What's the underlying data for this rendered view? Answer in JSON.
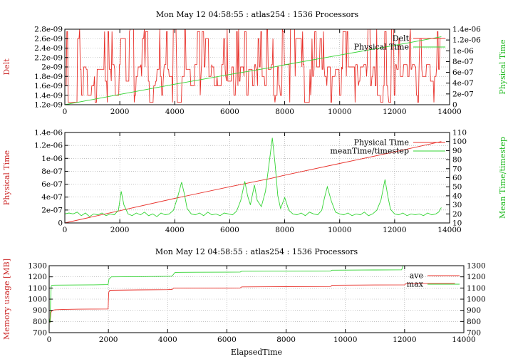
{
  "colors": {
    "red": "#e8302a",
    "green": "#33d433",
    "grid": "#a0a0a0",
    "axis": "#000000",
    "lblRed": "#cc2a2a",
    "lblGreen": "#22bb22"
  },
  "chart_data": [
    {
      "type": "line",
      "title": "Mon May 12 04:58:55 : atlas254 : 1536 Processors",
      "xlim": [
        0,
        14000
      ],
      "xticks": [
        0,
        2000,
        4000,
        6000,
        8000,
        10000,
        12000,
        14000
      ],
      "xtick_labels": [
        "0",
        "2000",
        "4000",
        "6000",
        "8000",
        "10000",
        "12000",
        "14000"
      ],
      "y_left": {
        "label": "Delt",
        "color": "red",
        "lim": [
          1.2e-09,
          2.8e-09
        ],
        "ticks": [
          1.2e-09,
          1.4e-09,
          1.6e-09,
          1.8e-09,
          2e-09,
          2.2e-09,
          2.4e-09,
          2.6e-09,
          2.8e-09
        ],
        "tick_labels": [
          "1.2e-09",
          "1.4e-09",
          "1.6e-09",
          "1.8e-09",
          "2e-09",
          "2.2e-09",
          "2.4e-09",
          "2.6e-09",
          "2.8e-09"
        ]
      },
      "y_right": {
        "label": "Physical Time",
        "color": "green",
        "lim": [
          0,
          1.4e-06
        ],
        "ticks": [
          0,
          2e-07,
          4e-07,
          6e-07,
          8e-07,
          1e-06,
          1.2e-06,
          1.4e-06
        ],
        "tick_labels": [
          "0",
          "2e-07",
          "4e-07",
          "6e-07",
          "8e-07",
          "1e-06",
          "1.2e-06",
          "1.4e-06"
        ]
      },
      "legend": "top-right",
      "series": [
        {
          "name": "Delt",
          "axis": "left",
          "color": "red",
          "kind": "noisy",
          "x_range": [
            0,
            13700
          ],
          "n": 560,
          "seed": 7,
          "levels": [
            1.25e-09,
            1.4e-09,
            1.6e-09,
            1.7e-09,
            1.8e-09,
            1.95e-09,
            2e-09,
            2.05e-09,
            2.6e-09,
            2.75e-09,
            2.8e-09
          ]
        },
        {
          "name": "Physical Time",
          "axis": "right",
          "color": "green",
          "kind": "line",
          "x": [
            0,
            2000,
            4000,
            6000,
            7500,
            8000,
            10000,
            12000,
            13700
          ],
          "y": [
            0,
            1.9e-07,
            3.8e-07,
            5.6e-07,
            6.9e-07,
            7.4e-07,
            9.2e-07,
            1.1e-06,
            1.26e-06
          ]
        }
      ]
    },
    {
      "type": "line",
      "title": "",
      "xlim": [
        0,
        14000
      ],
      "xticks": [
        0,
        2000,
        4000,
        6000,
        8000,
        10000,
        12000,
        14000
      ],
      "xtick_labels": [
        "0",
        "2000",
        "4000",
        "6000",
        "8000",
        "10000",
        "12000",
        "14000"
      ],
      "y_left": {
        "label": "Physical Time",
        "color": "red",
        "lim": [
          0,
          1.4e-06
        ],
        "ticks": [
          0,
          2e-07,
          4e-07,
          6e-07,
          8e-07,
          1e-06,
          1.2e-06,
          1.4e-06
        ],
        "tick_labels": [
          "0",
          "2e-07",
          "4e-07",
          "6e-07",
          "8e-07",
          "1e-06",
          "1.2e-06",
          "1.4e-06"
        ]
      },
      "y_right": {
        "label": "Mean Time/timestep",
        "color": "green",
        "lim": [
          10,
          110
        ],
        "ticks": [
          10,
          20,
          30,
          40,
          50,
          60,
          70,
          80,
          90,
          100,
          110
        ],
        "tick_labels": [
          "10",
          "20",
          "30",
          "40",
          "50",
          "60",
          "70",
          "80",
          "90",
          "100",
          "110"
        ]
      },
      "legend": "top-right",
      "series": [
        {
          "name": "Physical Time",
          "axis": "left",
          "color": "red",
          "kind": "line",
          "x": [
            0,
            2000,
            4000,
            6000,
            7500,
            8000,
            10000,
            12000,
            13700
          ],
          "y": [
            0,
            1.9e-07,
            3.8e-07,
            5.6e-07,
            6.9e-07,
            7.4e-07,
            9.2e-07,
            1.1e-06,
            1.26e-06
          ]
        },
        {
          "name": "meanTime/timestep",
          "axis": "right",
          "color": "green",
          "kind": "line",
          "x": [
            0,
            150,
            300,
            450,
            600,
            750,
            900,
            1050,
            1200,
            1350,
            1500,
            1650,
            1800,
            1950,
            2050,
            2150,
            2300,
            2450,
            2600,
            2750,
            2900,
            3050,
            3200,
            3350,
            3500,
            3650,
            3800,
            3950,
            4100,
            4250,
            4350,
            4450,
            4600,
            4750,
            4900,
            5050,
            5200,
            5350,
            5500,
            5650,
            5800,
            5950,
            6100,
            6250,
            6400,
            6550,
            6650,
            6750,
            6900,
            7000,
            7150,
            7300,
            7450,
            7550,
            7650,
            7750,
            7850,
            8000,
            8150,
            8300,
            8450,
            8600,
            8750,
            8900,
            9050,
            9200,
            9350,
            9450,
            9550,
            9700,
            9850,
            10000,
            10150,
            10300,
            10450,
            10600,
            10750,
            10900,
            11050,
            11200,
            11350,
            11500,
            11650,
            11750,
            11850,
            12000,
            12150,
            12300,
            12450,
            12600,
            12750,
            12900,
            13050,
            13200,
            13350,
            13500,
            13600,
            13700
          ],
          "y": [
            20,
            21,
            20,
            22,
            18,
            21,
            17,
            20,
            19,
            21,
            18,
            20,
            19,
            24,
            45,
            30,
            20,
            18,
            21,
            19,
            22,
            18,
            20,
            17,
            21,
            19,
            20,
            24,
            38,
            55,
            42,
            26,
            20,
            19,
            21,
            18,
            22,
            19,
            20,
            18,
            21,
            20,
            19,
            23,
            35,
            56,
            40,
            30,
            52,
            35,
            28,
            45,
            80,
            104,
            75,
            40,
            26,
            38,
            24,
            20,
            19,
            21,
            18,
            22,
            20,
            19,
            24,
            38,
            50,
            34,
            22,
            20,
            19,
            21,
            18,
            20,
            19,
            22,
            18,
            20,
            24,
            35,
            58,
            40,
            25,
            20,
            19,
            21,
            18,
            20,
            19,
            20,
            18,
            21,
            19,
            20,
            22,
            27
          ]
        }
      ]
    },
    {
      "type": "line",
      "title": "Mon May 12 04:58:55 : atlas254 : 1536 Processors",
      "xlabel": "ElapsedTime",
      "xlim": [
        0,
        14000
      ],
      "xticks": [
        0,
        2000,
        4000,
        6000,
        8000,
        10000,
        12000,
        14000
      ],
      "xtick_labels": [
        "0",
        "2000",
        "4000",
        "6000",
        "8000",
        "10000",
        "12000",
        "14000"
      ],
      "y_left": {
        "label": "Memory usage [MB]",
        "color": "red",
        "lim": [
          700,
          1300
        ],
        "ticks": [
          700,
          800,
          900,
          1000,
          1100,
          1200,
          1300
        ],
        "tick_labels": [
          "700",
          "800",
          "900",
          "1000",
          "1100",
          "1200",
          "1300"
        ]
      },
      "y_right": {
        "label": "",
        "color": "black",
        "lim": [
          700,
          1300
        ],
        "ticks": [
          700,
          800,
          900,
          1000,
          1100,
          1200,
          1300
        ],
        "tick_labels": [
          "700",
          "800",
          "900",
          "1000",
          "1100",
          "1200",
          "1300"
        ]
      },
      "legend": "top-right",
      "series": [
        {
          "name": "ave",
          "axis": "left",
          "color": "red",
          "kind": "line",
          "x": [
            0,
            30,
            60,
            100,
            200,
            500,
            1000,
            1500,
            1990,
            2010,
            2050,
            3000,
            4000,
            4150,
            4200,
            5000,
            6000,
            6450,
            6500,
            8000,
            9500,
            9550,
            11000,
            12000,
            12050,
            13700
          ],
          "y": [
            800,
            790,
            880,
            900,
            905,
            908,
            910,
            911,
            912,
            1060,
            1080,
            1083,
            1085,
            1086,
            1100,
            1100,
            1100,
            1101,
            1110,
            1112,
            1113,
            1125,
            1127,
            1128,
            1140,
            1142
          ]
        },
        {
          "name": "max",
          "axis": "left",
          "color": "green",
          "kind": "line",
          "x": [
            0,
            30,
            50,
            70,
            100,
            200,
            1000,
            1500,
            1990,
            2020,
            2100,
            3000,
            4000,
            4150,
            4250,
            5000,
            6000,
            6450,
            6500,
            8000,
            9500,
            9550,
            11000,
            11900,
            11950,
            12000
          ],
          "y": [
            830,
            790,
            1000,
            1120,
            1125,
            1126,
            1127,
            1128,
            1130,
            1180,
            1200,
            1202,
            1205,
            1206,
            1240,
            1241,
            1242,
            1243,
            1250,
            1251,
            1252,
            1260,
            1262,
            1263,
            1300,
            1300
          ]
        }
      ]
    }
  ]
}
